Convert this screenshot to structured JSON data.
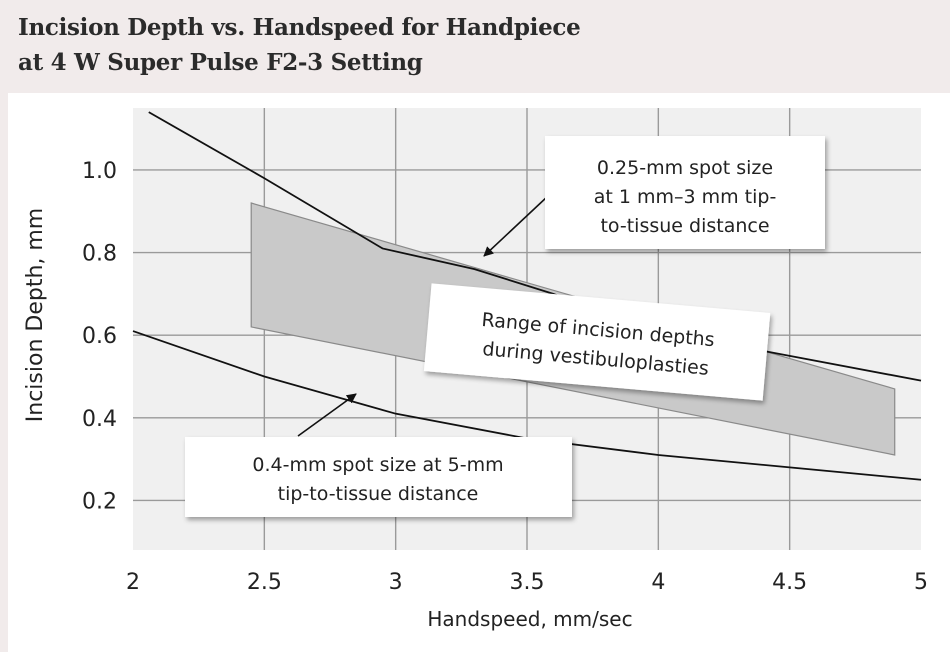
{
  "chart_data": {
    "type": "line",
    "title": [
      "Incision Depth vs. Handspeed for Handpiece",
      "at 4 W Super Pulse F2-3 Setting"
    ],
    "xlabel": "Handspeed, mm/sec",
    "ylabel": "Incision Depth, mm",
    "xlim": [
      2,
      5
    ],
    "ylim": [
      0.08,
      1.15
    ],
    "x_ticks": [
      "2",
      "2.5",
      "3",
      "3.5",
      "4",
      "4.5",
      "5"
    ],
    "y_ticks": [
      "1.0",
      "0.8",
      "0.6",
      "0.4",
      "0.2"
    ],
    "grid": true,
    "series": [
      {
        "name": "0.25-mm spot size at 1 mm–3 mm tip-to-tissue distance",
        "x": [
          2.06,
          2.5,
          2.95,
          3.3,
          3.6,
          3.8,
          4.0,
          4.5,
          5.0
        ],
        "y": [
          1.14,
          0.98,
          0.81,
          0.76,
          0.7,
          0.65,
          0.61,
          0.55,
          0.49
        ]
      },
      {
        "name": "0.4-mm spot size at 5-mm tip-to-tissue distance",
        "x": [
          2.0,
          2.5,
          3.0,
          3.5,
          4.0,
          4.5,
          5.0
        ],
        "y": [
          0.61,
          0.5,
          0.41,
          0.35,
          0.31,
          0.28,
          0.25
        ]
      }
    ],
    "band": {
      "name": "Range of incision depths during vestibuloplasties",
      "upper": {
        "x": [
          2.45,
          4.9
        ],
        "y": [
          0.92,
          0.47
        ]
      },
      "lower": {
        "x": [
          2.45,
          4.9
        ],
        "y": [
          0.62,
          0.31
        ]
      }
    },
    "annotations": [
      {
        "lines": [
          "0.25-mm spot size",
          "at 1 mm–3 mm tip-",
          "to-tissue distance"
        ]
      },
      {
        "lines": [
          "Range of incision depths",
          "during vestibuloplasties"
        ]
      },
      {
        "lines": [
          "0.4-mm spot size at 5-mm",
          "tip-to-tissue distance"
        ]
      }
    ]
  }
}
